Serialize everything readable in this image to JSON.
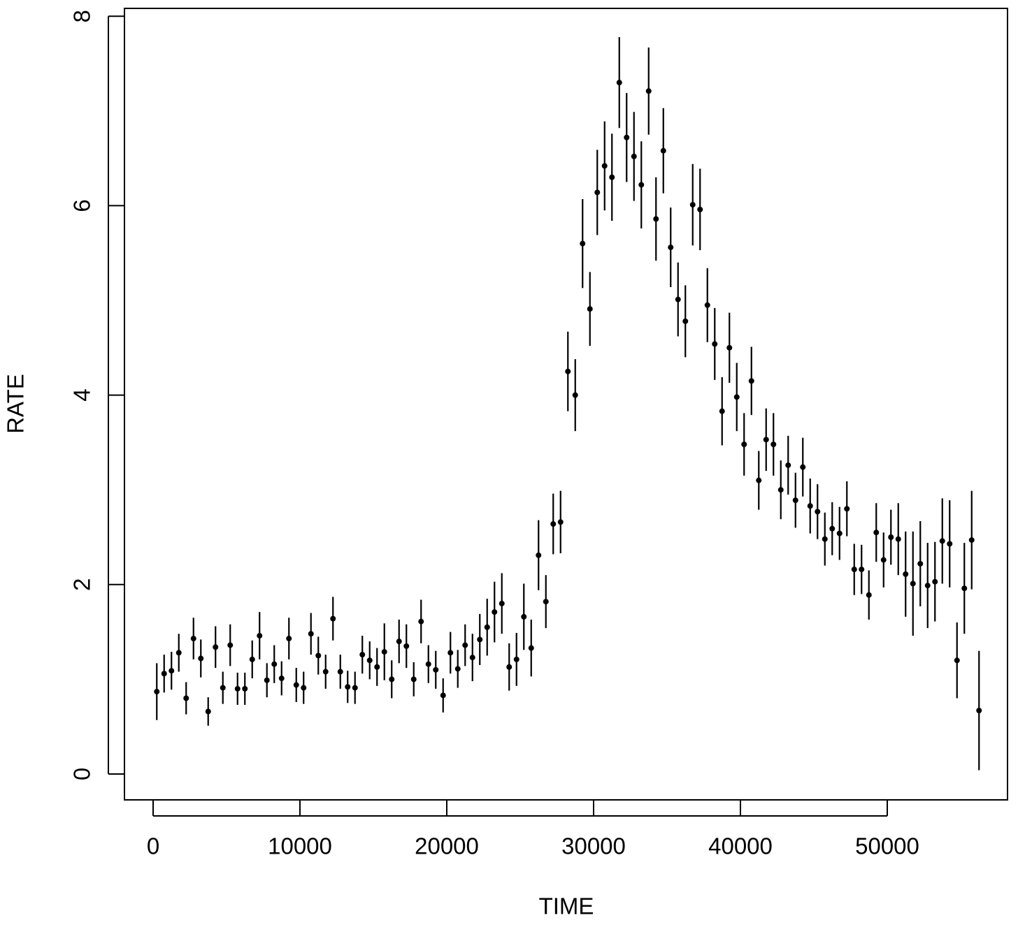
{
  "chart_data": {
    "type": "scatter",
    "xlabel": "TIME",
    "ylabel": "RATE",
    "x": [
      250,
      750,
      1250,
      1750,
      2250,
      2750,
      3250,
      3750,
      4250,
      4750,
      5250,
      5750,
      6250,
      6750,
      7250,
      7750,
      8250,
      8750,
      9250,
      9750,
      10250,
      10750,
      11250,
      11750,
      12250,
      12750,
      13250,
      13750,
      14250,
      14750,
      15250,
      15750,
      16250,
      16750,
      17250,
      17750,
      18250,
      18750,
      19250,
      19750,
      20250,
      20750,
      21250,
      21750,
      22250,
      22750,
      23250,
      23750,
      24250,
      24750,
      25250,
      25750,
      26250,
      26750,
      27250,
      27750,
      28250,
      28750,
      29250,
      29750,
      30250,
      30750,
      31250,
      31750,
      32250,
      32750,
      33250,
      33750,
      34250,
      34750,
      35250,
      35750,
      36250,
      36750,
      37250,
      37750,
      38250,
      38750,
      39250,
      39750,
      40250,
      40750,
      41250,
      41750,
      42250,
      42750,
      43250,
      43750,
      44250,
      44750,
      45250,
      45750,
      46250,
      46750,
      47250,
      47750,
      48250,
      48750,
      49250,
      49750,
      50250,
      50750,
      51250,
      51750,
      52250,
      52750,
      53250,
      53750,
      54250,
      54750,
      55250,
      55750,
      56250
    ],
    "values": [
      0.87,
      1.06,
      1.09,
      1.28,
      0.8,
      1.43,
      1.22,
      0.66,
      1.34,
      0.91,
      1.36,
      0.9,
      0.9,
      1.21,
      1.46,
      0.99,
      1.16,
      1.01,
      1.43,
      0.94,
      0.91,
      1.48,
      1.25,
      1.08,
      1.64,
      1.08,
      0.92,
      0.91,
      1.26,
      1.2,
      1.13,
      1.29,
      1.0,
      1.4,
      1.35,
      1.0,
      1.61,
      1.16,
      1.1,
      0.83,
      1.28,
      1.11,
      1.36,
      1.23,
      1.42,
      1.55,
      1.71,
      1.8,
      1.13,
      1.21,
      1.66,
      1.33,
      2.31,
      1.82,
      2.64,
      2.66,
      4.25,
      4.0,
      5.6,
      4.91,
      6.14,
      6.42,
      6.3,
      7.3,
      6.72,
      6.52,
      6.22,
      7.21,
      5.86,
      6.58,
      5.56,
      5.01,
      4.78,
      6.01,
      5.96,
      4.95,
      4.54,
      3.83,
      4.5,
      3.98,
      3.48,
      4.15,
      3.1,
      3.53,
      3.48,
      3.0,
      3.26,
      2.89,
      3.24,
      2.83,
      2.77,
      2.48,
      2.59,
      2.54,
      2.8,
      2.16,
      2.16,
      1.89,
      2.55,
      2.26,
      2.5,
      2.48,
      2.11,
      2.01,
      2.22,
      1.99,
      2.03,
      2.46,
      2.43,
      1.2,
      1.96,
      2.47,
      0.67
    ],
    "errors": [
      0.3,
      0.2,
      0.2,
      0.2,
      0.17,
      0.22,
      0.2,
      0.15,
      0.22,
      0.17,
      0.22,
      0.17,
      0.17,
      0.2,
      0.25,
      0.18,
      0.2,
      0.18,
      0.22,
      0.18,
      0.17,
      0.22,
      0.2,
      0.18,
      0.23,
      0.18,
      0.17,
      0.17,
      0.2,
      0.2,
      0.2,
      0.3,
      0.2,
      0.23,
      0.23,
      0.18,
      0.23,
      0.2,
      0.2,
      0.18,
      0.22,
      0.2,
      0.22,
      0.25,
      0.27,
      0.3,
      0.32,
      0.32,
      0.25,
      0.28,
      0.35,
      0.3,
      0.37,
      0.28,
      0.32,
      0.33,
      0.42,
      0.38,
      0.47,
      0.39,
      0.45,
      0.47,
      0.46,
      0.48,
      0.47,
      0.47,
      0.46,
      0.46,
      0.44,
      0.45,
      0.42,
      0.39,
      0.38,
      0.43,
      0.43,
      0.39,
      0.38,
      0.36,
      0.37,
      0.36,
      0.33,
      0.36,
      0.31,
      0.33,
      0.33,
      0.31,
      0.31,
      0.29,
      0.31,
      0.29,
      0.29,
      0.28,
      0.28,
      0.28,
      0.29,
      0.27,
      0.26,
      0.26,
      0.31,
      0.29,
      0.29,
      0.38,
      0.45,
      0.55,
      0.45,
      0.45,
      0.42,
      0.45,
      0.46,
      0.4,
      0.48,
      0.52,
      0.63
    ],
    "color": "#000000",
    "xlim": [
      -1952,
      58190
    ],
    "xticks": [
      0,
      10000,
      20000,
      30000,
      40000,
      50000
    ],
    "ylim": [
      -0.273,
      8.083
    ],
    "yticks": [
      0,
      2,
      4,
      6,
      8
    ]
  }
}
